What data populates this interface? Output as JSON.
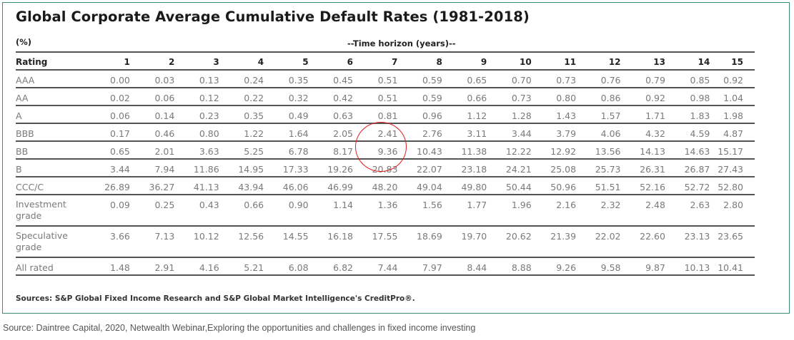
{
  "title": "Global Corporate Average Cumulative Default Rates (1981-2018)",
  "unit_label": "(%)",
  "horizon_label": "--Time horizon (years)--",
  "columns": [
    "Rating",
    "1",
    "2",
    "3",
    "4",
    "5",
    "6",
    "7",
    "8",
    "9",
    "10",
    "11",
    "12",
    "13",
    "14",
    "15"
  ],
  "rows": [
    {
      "rating": "AAA",
      "values": [
        "0.00",
        "0.03",
        "0.13",
        "0.24",
        "0.35",
        "0.45",
        "0.51",
        "0.59",
        "0.65",
        "0.70",
        "0.73",
        "0.76",
        "0.79",
        "0.85",
        "0.92"
      ]
    },
    {
      "rating": "AA",
      "values": [
        "0.02",
        "0.06",
        "0.12",
        "0.22",
        "0.32",
        "0.42",
        "0.51",
        "0.59",
        "0.66",
        "0.73",
        "0.80",
        "0.86",
        "0.92",
        "0.98",
        "1.04"
      ]
    },
    {
      "rating": "A",
      "values": [
        "0.06",
        "0.14",
        "0.23",
        "0.35",
        "0.49",
        "0.63",
        "0.81",
        "0.96",
        "1.12",
        "1.28",
        "1.43",
        "1.57",
        "1.71",
        "1.83",
        "1.98"
      ]
    },
    {
      "rating": "BBB",
      "values": [
        "0.17",
        "0.46",
        "0.80",
        "1.22",
        "1.64",
        "2.05",
        "2.41",
        "2.76",
        "3.11",
        "3.44",
        "3.79",
        "4.06",
        "4.32",
        "4.59",
        "4.87"
      ]
    },
    {
      "rating": "BB",
      "values": [
        "0.65",
        "2.01",
        "3.63",
        "5.25",
        "6.78",
        "8.17",
        "9.36",
        "10.43",
        "11.38",
        "12.22",
        "12.92",
        "13.56",
        "14.13",
        "14.63",
        "15.17"
      ]
    },
    {
      "rating": "B",
      "values": [
        "3.44",
        "7.94",
        "11.86",
        "14.95",
        "17.33",
        "19.26",
        "20.83",
        "22.07",
        "23.18",
        "24.21",
        "25.08",
        "25.73",
        "26.31",
        "26.87",
        "27.43"
      ]
    },
    {
      "rating": "CCC/C",
      "values": [
        "26.89",
        "36.27",
        "41.13",
        "43.94",
        "46.06",
        "46.99",
        "48.20",
        "49.04",
        "49.80",
        "50.44",
        "50.96",
        "51.51",
        "52.16",
        "52.72",
        "52.80"
      ]
    },
    {
      "rating": "Investment grade",
      "values": [
        "0.09",
        "0.25",
        "0.43",
        "0.66",
        "0.90",
        "1.14",
        "1.36",
        "1.56",
        "1.77",
        "1.96",
        "2.16",
        "2.32",
        "2.48",
        "2.63",
        "2.80"
      ]
    },
    {
      "rating": "Speculative grade",
      "values": [
        "3.66",
        "7.13",
        "10.12",
        "12.56",
        "14.55",
        "16.18",
        "17.55",
        "18.69",
        "19.70",
        "20.62",
        "21.39",
        "22.02",
        "22.60",
        "23.13",
        "23.65"
      ]
    },
    {
      "rating": "All rated",
      "values": [
        "1.48",
        "2.91",
        "4.16",
        "5.21",
        "6.08",
        "6.82",
        "7.44",
        "7.97",
        "8.44",
        "8.88",
        "9.26",
        "9.58",
        "9.87",
        "10.13",
        "10.41"
      ]
    }
  ],
  "highlight": {
    "note": "BBB and BB at year 7 circled",
    "color": "#e02020"
  },
  "sources": "Sources: S&P Global Fixed Income Research and S&P Global Market Intelligence's CreditPro®.",
  "caption": "Source: Daintree Capital, 2020, Netwealth Webinar,Exploring the opportunities and challenges in fixed income investing"
}
